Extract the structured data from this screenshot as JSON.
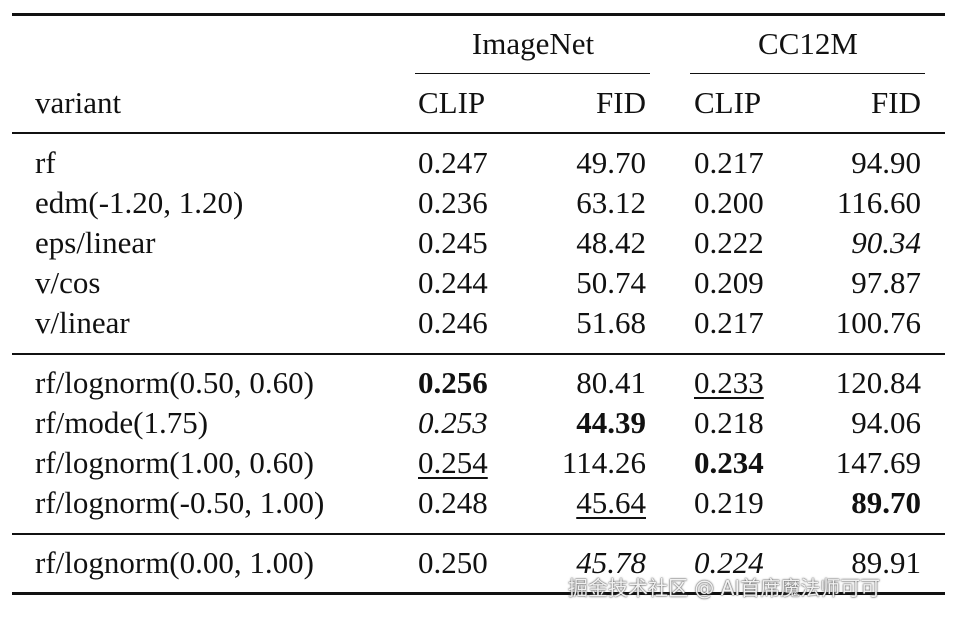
{
  "header": {
    "groups": [
      "ImageNet",
      "CC12M"
    ],
    "columns": [
      "variant",
      "CLIP",
      "FID",
      "CLIP",
      "FID"
    ]
  },
  "table": {
    "sections": [
      [
        [
          "rf",
          "0.247",
          "49.70",
          "0.217",
          "94.90"
        ],
        [
          "edm(-1.20, 1.20)",
          "0.236",
          "63.12",
          "0.200",
          "116.60"
        ],
        [
          "eps/linear",
          "0.245",
          "48.42",
          "0.222",
          "90.34"
        ],
        [
          "v/cos",
          "0.244",
          "50.74",
          "0.209",
          "97.87"
        ],
        [
          "v/linear",
          "0.246",
          "51.68",
          "0.217",
          "100.76"
        ]
      ],
      [
        [
          "rf/lognorm(0.50, 0.60)",
          "0.256",
          "80.41",
          "0.233",
          "120.84"
        ],
        [
          "rf/mode(1.75)",
          "0.253",
          "44.39",
          "0.218",
          "94.06"
        ],
        [
          "rf/lognorm(1.00, 0.60)",
          "0.254",
          "114.26",
          "0.234",
          "147.69"
        ],
        [
          "rf/lognorm(-0.50, 1.00)",
          "0.248",
          "45.64",
          "0.219",
          "89.70"
        ]
      ],
      [
        [
          "rf/lognorm(0.00, 1.00)",
          "0.250",
          "45.78",
          "0.224",
          "89.91"
        ]
      ]
    ]
  },
  "watermark": "掘金技术社区 @ AI首席魔法师可可"
}
